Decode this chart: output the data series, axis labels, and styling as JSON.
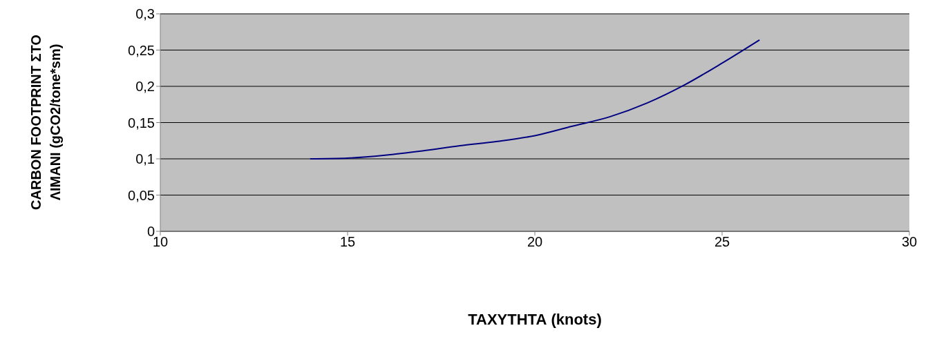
{
  "chart_data": {
    "type": "line",
    "xlabel": "ΤΑΧΥΤΗΤΑ (knots)",
    "ylabel": "CARBON FOOTPRINT ΣΤΟ ΛΙΜΑΝΙ (gCO2/tone*sm)",
    "x": [
      14,
      15,
      16,
      17,
      18,
      19,
      20,
      21,
      22,
      23,
      24,
      25,
      26
    ],
    "series": [
      {
        "color": "#000080",
        "values": [
          0.1,
          0.101,
          0.105,
          0.111,
          0.118,
          0.124,
          0.132,
          0.145,
          0.158,
          0.177,
          0.202,
          0.232,
          0.264
        ]
      }
    ],
    "xlim": [
      10,
      30
    ],
    "xticks": [
      10,
      15,
      20,
      25,
      30
    ],
    "ylim": [
      0,
      0.3
    ],
    "yticks": [
      {
        "value": 0,
        "label": "0"
      },
      {
        "value": 0.05,
        "label": "0,05"
      },
      {
        "value": 0.1,
        "label": "0,1"
      },
      {
        "value": 0.15,
        "label": "0,15"
      },
      {
        "value": 0.2,
        "label": "0,2"
      },
      {
        "value": 0.25,
        "label": "0,25"
      },
      {
        "value": 0.3,
        "label": "0,3"
      }
    ],
    "grid": "y",
    "marker": "none",
    "line_style": "solid"
  }
}
